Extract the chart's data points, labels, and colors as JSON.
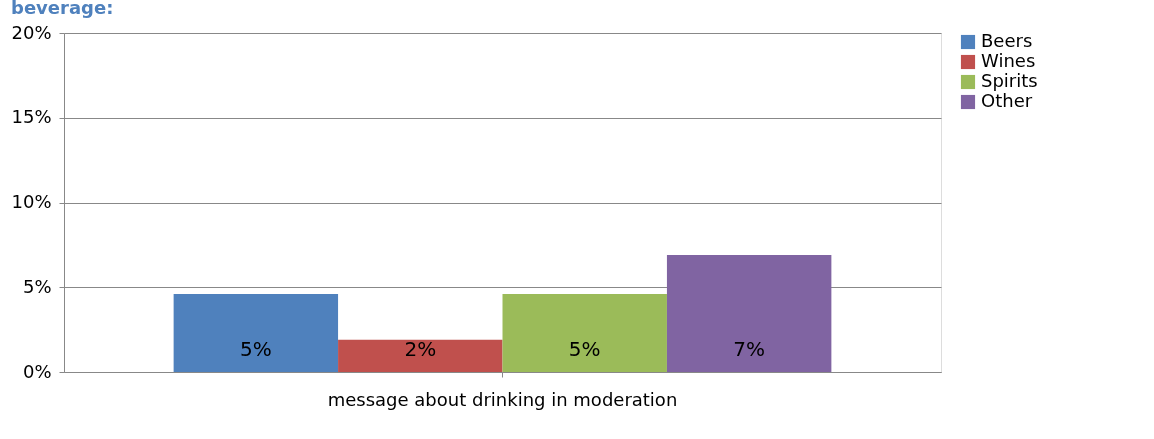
{
  "chart_data": {
    "type": "bar",
    "title": "beverage:",
    "categories": [
      "message about drinking in moderation"
    ],
    "series": [
      {
        "name": "Beers",
        "color": "#4f81bd",
        "values": [
          4.6
        ],
        "value_labels": [
          "5%"
        ]
      },
      {
        "name": "Wines",
        "color": "#c0504d",
        "values": [
          1.9
        ],
        "value_labels": [
          "2%"
        ]
      },
      {
        "name": "Spirits",
        "color": "#9bbb59",
        "values": [
          4.6
        ],
        "value_labels": [
          "5%"
        ]
      },
      {
        "name": "Other",
        "color": "#8064a2",
        "values": [
          6.9
        ],
        "value_labels": [
          "7%"
        ]
      }
    ],
    "ylim": [
      0,
      20
    ],
    "yticks": [
      {
        "value": 0,
        "label": "0%"
      },
      {
        "value": 5,
        "label": "5%"
      },
      {
        "value": 10,
        "label": "10%"
      },
      {
        "value": 15,
        "label": "15%"
      },
      {
        "value": 20,
        "label": "20%"
      }
    ],
    "grid": "y",
    "legend": "right"
  }
}
